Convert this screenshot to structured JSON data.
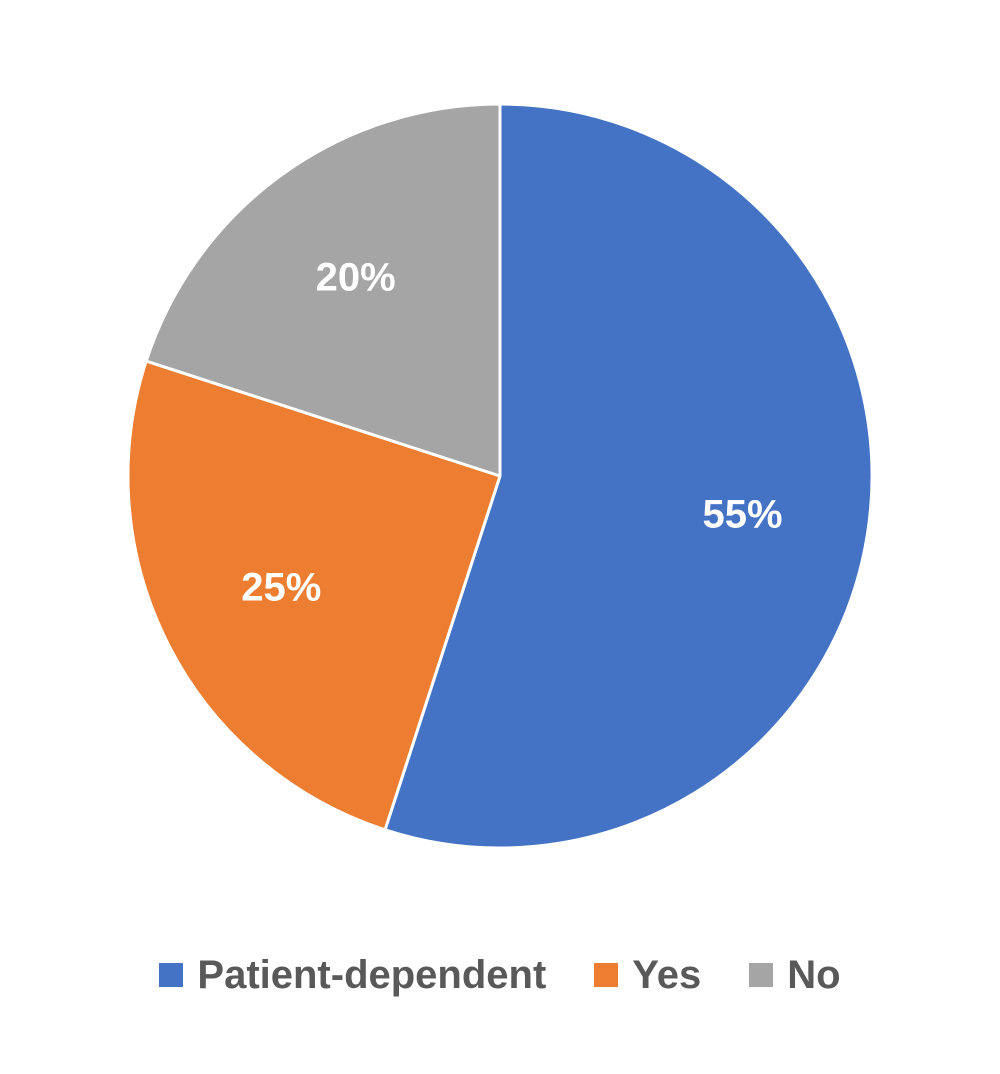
{
  "chart_data": {
    "type": "pie",
    "title": "",
    "start_angle_deg": 0,
    "direction": "clockwise",
    "legend_position": "bottom",
    "slices": [
      {
        "name": "Patient-dependent",
        "value": 55,
        "label": "55%",
        "color": "#4472C4"
      },
      {
        "name": "Yes",
        "value": 25,
        "label": "25%",
        "color": "#ED7D31"
      },
      {
        "name": "No",
        "value": 20,
        "label": "20%",
        "color": "#A5A5A5"
      }
    ]
  }
}
